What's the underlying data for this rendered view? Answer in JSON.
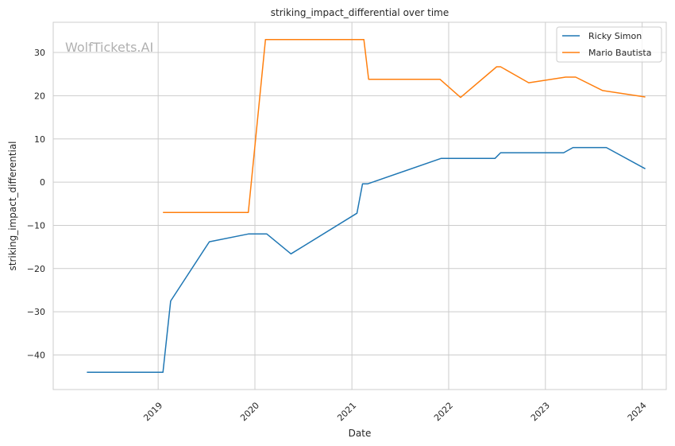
{
  "chart_data": {
    "type": "line",
    "title": "striking_impact_differential over time",
    "xlabel": "Date",
    "ylabel": "striking_impact_differential",
    "watermark": "WolfTickets.AI",
    "x_axis": {
      "type": "date",
      "range": [
        "2017-12-01",
        "2024-04-01"
      ],
      "ticks": [
        {
          "date": "2019-01-01",
          "label": "2019"
        },
        {
          "date": "2020-01-01",
          "label": "2020"
        },
        {
          "date": "2021-01-01",
          "label": "2021"
        },
        {
          "date": "2022-01-01",
          "label": "2022"
        },
        {
          "date": "2023-01-01",
          "label": "2023"
        },
        {
          "date": "2024-01-01",
          "label": "2024"
        }
      ]
    },
    "y_axis": {
      "range": [
        -48,
        37
      ],
      "ticks": [
        {
          "value": -40,
          "label": "−40"
        },
        {
          "value": -30,
          "label": "−30"
        },
        {
          "value": -20,
          "label": "−20"
        },
        {
          "value": -10,
          "label": "−10"
        },
        {
          "value": 0,
          "label": "0"
        },
        {
          "value": 10,
          "label": "10"
        },
        {
          "value": 20,
          "label": "20"
        },
        {
          "value": 30,
          "label": "30"
        }
      ]
    },
    "grid": true,
    "legend_position": "top-right",
    "series": [
      {
        "name": "Ricky Simon",
        "color": "#1f77b4",
        "points": [
          {
            "x": "2018-04-07",
            "y": -44
          },
          {
            "x": "2019-01-19",
            "y": -44
          },
          {
            "x": "2019-02-17",
            "y": -27.5
          },
          {
            "x": "2019-07-13",
            "y": -13.8
          },
          {
            "x": "2019-12-07",
            "y": -12
          },
          {
            "x": "2020-02-15",
            "y": -12
          },
          {
            "x": "2020-05-16",
            "y": -16.6
          },
          {
            "x": "2021-01-20",
            "y": -7.2
          },
          {
            "x": "2021-02-10",
            "y": -0.4
          },
          {
            "x": "2021-03-01",
            "y": -0.4
          },
          {
            "x": "2021-12-04",
            "y": 5.5
          },
          {
            "x": "2022-06-25",
            "y": 5.5
          },
          {
            "x": "2022-07-16",
            "y": 6.8
          },
          {
            "x": "2023-03-11",
            "y": 6.8
          },
          {
            "x": "2023-04-15",
            "y": 8
          },
          {
            "x": "2023-08-19",
            "y": 8
          },
          {
            "x": "2024-01-13",
            "y": 3.1
          }
        ]
      },
      {
        "name": "Mario Bautista",
        "color": "#ff7f0e",
        "points": [
          {
            "x": "2019-01-19",
            "y": -7
          },
          {
            "x": "2019-12-07",
            "y": -7
          },
          {
            "x": "2020-02-10",
            "y": 33
          },
          {
            "x": "2021-02-15",
            "y": 33
          },
          {
            "x": "2021-03-05",
            "y": 23.8
          },
          {
            "x": "2021-11-29",
            "y": 23.8
          },
          {
            "x": "2022-02-15",
            "y": 19.6
          },
          {
            "x": "2022-07-01",
            "y": 26.7
          },
          {
            "x": "2022-07-16",
            "y": 26.7
          },
          {
            "x": "2022-10-30",
            "y": 23
          },
          {
            "x": "2023-03-18",
            "y": 24.3
          },
          {
            "x": "2023-04-25",
            "y": 24.3
          },
          {
            "x": "2023-08-05",
            "y": 21.2
          },
          {
            "x": "2024-01-13",
            "y": 19.7
          }
        ]
      }
    ]
  }
}
